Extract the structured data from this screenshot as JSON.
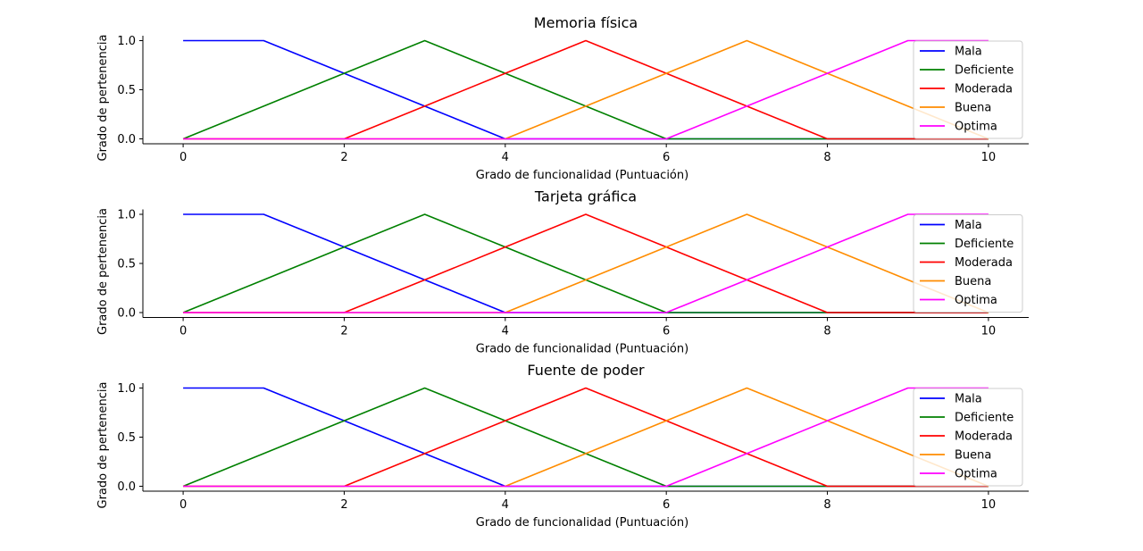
{
  "chart_data": [
    {
      "type": "line",
      "title": "Memoria física",
      "xlabel": "Grado de funcionalidad (Puntuación)",
      "ylabel": "Grado de pertenencia",
      "xlim": [
        -0.5,
        10.5
      ],
      "ylim": [
        -0.05,
        1.05
      ],
      "xticks": [
        0,
        2,
        4,
        6,
        8,
        10
      ],
      "yticks": [
        0.0,
        0.5,
        1.0
      ],
      "ytick_labels": [
        "0.0",
        "0.5",
        "1.0"
      ],
      "grid": false,
      "legend_position": "right",
      "series": [
        {
          "name": "Mala",
          "color": "#0000ff",
          "x": [
            0,
            1,
            2,
            3,
            4,
            5,
            6,
            7,
            8,
            9,
            10
          ],
          "y": [
            1.0,
            1.0,
            0.667,
            0.333,
            0.0,
            0.0,
            0.0,
            0.0,
            0.0,
            0.0,
            0.0
          ]
        },
        {
          "name": "Deficiente",
          "color": "#008000",
          "x": [
            0,
            1,
            2,
            3,
            4,
            5,
            6,
            7,
            8,
            9,
            10
          ],
          "y": [
            0.0,
            0.333,
            0.667,
            1.0,
            0.667,
            0.333,
            0.0,
            0.0,
            0.0,
            0.0,
            0.0
          ]
        },
        {
          "name": "Moderada",
          "color": "#ff0000",
          "x": [
            0,
            1,
            2,
            3,
            4,
            5,
            6,
            7,
            8,
            9,
            10
          ],
          "y": [
            0.0,
            0.0,
            0.0,
            0.333,
            0.667,
            1.0,
            0.667,
            0.333,
            0.0,
            0.0,
            0.0
          ]
        },
        {
          "name": "Buena",
          "color": "#ff8c00",
          "x": [
            0,
            1,
            2,
            3,
            4,
            5,
            6,
            7,
            8,
            9,
            10
          ],
          "y": [
            0.0,
            0.0,
            0.0,
            0.0,
            0.0,
            0.333,
            0.667,
            1.0,
            0.667,
            0.333,
            0.0
          ]
        },
        {
          "name": "Optima",
          "color": "#ff00ff",
          "x": [
            0,
            1,
            2,
            3,
            4,
            5,
            6,
            7,
            8,
            9,
            10
          ],
          "y": [
            0.0,
            0.0,
            0.0,
            0.0,
            0.0,
            0.0,
            0.0,
            0.333,
            0.667,
            1.0,
            1.0
          ]
        }
      ]
    },
    {
      "type": "line",
      "title": "Tarjeta gráfica",
      "xlabel": "Grado de funcionalidad (Puntuación)",
      "ylabel": "Grado de pertenencia",
      "xlim": [
        -0.5,
        10.5
      ],
      "ylim": [
        -0.05,
        1.05
      ],
      "xticks": [
        0,
        2,
        4,
        6,
        8,
        10
      ],
      "yticks": [
        0.0,
        0.5,
        1.0
      ],
      "ytick_labels": [
        "0.0",
        "0.5",
        "1.0"
      ],
      "grid": false,
      "legend_position": "right",
      "series": [
        {
          "name": "Mala",
          "color": "#0000ff",
          "x": [
            0,
            1,
            2,
            3,
            4,
            5,
            6,
            7,
            8,
            9,
            10
          ],
          "y": [
            1.0,
            1.0,
            0.667,
            0.333,
            0.0,
            0.0,
            0.0,
            0.0,
            0.0,
            0.0,
            0.0
          ]
        },
        {
          "name": "Deficiente",
          "color": "#008000",
          "x": [
            0,
            1,
            2,
            3,
            4,
            5,
            6,
            7,
            8,
            9,
            10
          ],
          "y": [
            0.0,
            0.333,
            0.667,
            1.0,
            0.667,
            0.333,
            0.0,
            0.0,
            0.0,
            0.0,
            0.0
          ]
        },
        {
          "name": "Moderada",
          "color": "#ff0000",
          "x": [
            0,
            1,
            2,
            3,
            4,
            5,
            6,
            7,
            8,
            9,
            10
          ],
          "y": [
            0.0,
            0.0,
            0.0,
            0.333,
            0.667,
            1.0,
            0.667,
            0.333,
            0.0,
            0.0,
            0.0
          ]
        },
        {
          "name": "Buena",
          "color": "#ff8c00",
          "x": [
            0,
            1,
            2,
            3,
            4,
            5,
            6,
            7,
            8,
            9,
            10
          ],
          "y": [
            0.0,
            0.0,
            0.0,
            0.0,
            0.0,
            0.333,
            0.667,
            1.0,
            0.667,
            0.333,
            0.0
          ]
        },
        {
          "name": "Optima",
          "color": "#ff00ff",
          "x": [
            0,
            1,
            2,
            3,
            4,
            5,
            6,
            7,
            8,
            9,
            10
          ],
          "y": [
            0.0,
            0.0,
            0.0,
            0.0,
            0.0,
            0.0,
            0.0,
            0.333,
            0.667,
            1.0,
            1.0
          ]
        }
      ]
    },
    {
      "type": "line",
      "title": "Fuente de poder",
      "xlabel": "Grado de funcionalidad (Puntuación)",
      "ylabel": "Grado de pertenencia",
      "xlim": [
        -0.5,
        10.5
      ],
      "ylim": [
        -0.05,
        1.05
      ],
      "xticks": [
        0,
        2,
        4,
        6,
        8,
        10
      ],
      "yticks": [
        0.0,
        0.5,
        1.0
      ],
      "ytick_labels": [
        "0.0",
        "0.5",
        "1.0"
      ],
      "grid": false,
      "legend_position": "right",
      "series": [
        {
          "name": "Mala",
          "color": "#0000ff",
          "x": [
            0,
            1,
            2,
            3,
            4,
            5,
            6,
            7,
            8,
            9,
            10
          ],
          "y": [
            1.0,
            1.0,
            0.667,
            0.333,
            0.0,
            0.0,
            0.0,
            0.0,
            0.0,
            0.0,
            0.0
          ]
        },
        {
          "name": "Deficiente",
          "color": "#008000",
          "x": [
            0,
            1,
            2,
            3,
            4,
            5,
            6,
            7,
            8,
            9,
            10
          ],
          "y": [
            0.0,
            0.333,
            0.667,
            1.0,
            0.667,
            0.333,
            0.0,
            0.0,
            0.0,
            0.0,
            0.0
          ]
        },
        {
          "name": "Moderada",
          "color": "#ff0000",
          "x": [
            0,
            1,
            2,
            3,
            4,
            5,
            6,
            7,
            8,
            9,
            10
          ],
          "y": [
            0.0,
            0.0,
            0.0,
            0.333,
            0.667,
            1.0,
            0.667,
            0.333,
            0.0,
            0.0,
            0.0
          ]
        },
        {
          "name": "Buena",
          "color": "#ff8c00",
          "x": [
            0,
            1,
            2,
            3,
            4,
            5,
            6,
            7,
            8,
            9,
            10
          ],
          "y": [
            0.0,
            0.0,
            0.0,
            0.0,
            0.0,
            0.333,
            0.667,
            1.0,
            0.667,
            0.333,
            0.0
          ]
        },
        {
          "name": "Optima",
          "color": "#ff00ff",
          "x": [
            0,
            1,
            2,
            3,
            4,
            5,
            6,
            7,
            8,
            9,
            10
          ],
          "y": [
            0.0,
            0.0,
            0.0,
            0.0,
            0.0,
            0.0,
            0.0,
            0.333,
            0.667,
            1.0,
            1.0
          ]
        }
      ]
    }
  ]
}
